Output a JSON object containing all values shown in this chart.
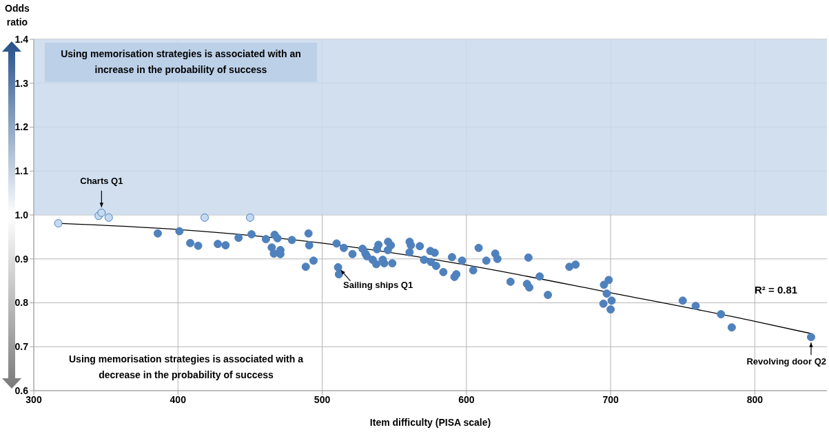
{
  "chart_data": {
    "type": "scatter",
    "xlabel": "Item difficulty (PISA scale)",
    "ylabel": "Odds ratio",
    "xlim": [
      300,
      850
    ],
    "xticks": [
      300,
      400,
      500,
      600,
      700,
      800
    ],
    "ylim": [
      0.6,
      1.4
    ],
    "yticks": [
      0.6,
      0.7,
      0.8,
      0.9,
      {
        "value": 1,
        "label": "1.0"
      },
      1.1,
      1.2,
      1.3,
      1.4
    ],
    "grid": true,
    "marker": "circle",
    "bands": [
      {
        "axis": "y",
        "from": 1.0,
        "to": 1.4,
        "label": "Using memorisation strategies is associated with an increase in the probability of success",
        "color": "#c9d9ec"
      }
    ],
    "series": [
      {
        "color": "#c5d9f1",
        "x": [
          317,
          345,
          347,
          352,
          418.5,
          450
        ],
        "values": [
          0.981,
          0.998,
          1.005,
          0.994,
          0.994,
          0.994
        ]
      },
      {
        "color": "#4f81bd",
        "x": [
          386,
          401,
          408.5,
          414,
          427.6,
          433,
          442,
          451,
          461,
          465,
          466.5,
          471,
          471,
          467,
          469,
          479,
          490.5,
          491,
          488.6,
          494,
          510,
          515,
          521,
          528,
          530,
          531,
          535,
          537.5,
          538,
          539,
          542,
          543,
          545.7,
          547.6,
          545.5,
          548.6,
          560.6,
          561.5,
          560.6,
          567.7,
          570.6,
          575,
          578,
          575.4,
          579,
          584,
          590,
          597,
          591.7,
          593,
          604.7,
          608.5,
          613.8,
          620,
          621.5,
          630.6,
          642,
          643.6,
          643,
          650.8,
          656.5,
          671.4,
          675.7,
          511,
          511.6,
          695.4,
          698.7,
          697.3,
          700.7,
          695,
          700,
          750,
          759,
          776.5,
          784,
          839
        ],
        "values": [
          0.958,
          0.963,
          0.936,
          0.93,
          0.934,
          0.931,
          0.948,
          0.956,
          0.945,
          0.926,
          0.912,
          0.92,
          0.911,
          0.955,
          0.947,
          0.943,
          0.958,
          0.931,
          0.882,
          0.896,
          0.935,
          0.925,
          0.911,
          0.923,
          0.912,
          0.906,
          0.898,
          0.888,
          0.922,
          0.932,
          0.898,
          0.89,
          0.939,
          0.931,
          0.92,
          0.89,
          0.939,
          0.931,
          0.915,
          0.929,
          0.898,
          0.918,
          0.914,
          0.893,
          0.884,
          0.87,
          0.904,
          0.896,
          0.859,
          0.865,
          0.874,
          0.925,
          0.896,
          0.912,
          0.9,
          0.848,
          0.843,
          0.835,
          0.903,
          0.86,
          0.818,
          0.882,
          0.887,
          0.881,
          0.865,
          0.841,
          0.852,
          0.821,
          0.805,
          0.798,
          0.785,
          0.805,
          0.793,
          0.774,
          0.744,
          0.722
        ]
      },
      {
        "type": "line",
        "color": "#000000",
        "marker": "none",
        "x": [
          317,
          400,
          500,
          564,
          600,
          700,
          800,
          839
        ],
        "values": [
          0.981,
          0.967,
          0.936,
          0.906,
          0.886,
          0.823,
          0.758,
          0.73
        ]
      }
    ],
    "annotations": [
      "Using memorisation strategies is associated with a decrease in the probability of success",
      {
        "text": "Charts Q1",
        "x": 347,
        "y": 1.005
      },
      {
        "text": "Sailing ships Q1",
        "x": 511,
        "y": 0.881
      },
      {
        "text": "Revolving door Q2",
        "x": 839,
        "y": 0.722
      },
      "R² = 0.81"
    ]
  }
}
